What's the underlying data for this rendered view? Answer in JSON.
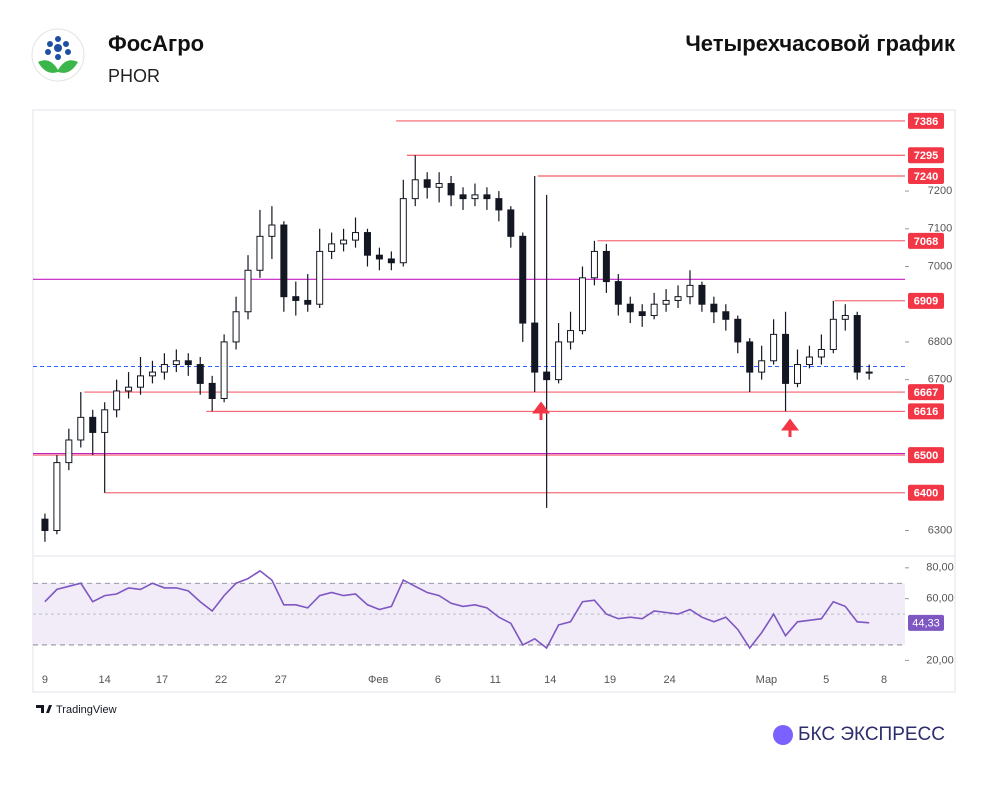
{
  "header": {
    "company": "ФосАгро",
    "ticker": "PHOR",
    "chart_title": "Четырехчасовой график"
  },
  "footer": {
    "source": "TradingView",
    "brand": "БКС ЭКСПРЕСС"
  },
  "chart_data": [
    {
      "type": "candlestick",
      "xlim": [
        0,
        73
      ],
      "xticks": [
        {
          "value": 1,
          "label": "9"
        },
        {
          "value": 6,
          "label": "14"
        },
        {
          "value": 10.8,
          "label": "17"
        },
        {
          "value": 15.75,
          "label": "22"
        },
        {
          "value": 20.75,
          "label": "27"
        },
        {
          "value": 28.9,
          "label": "Фев"
        },
        {
          "value": 33.9,
          "label": "6"
        },
        {
          "value": 38.7,
          "label": "11"
        },
        {
          "value": 43.3,
          "label": "14"
        },
        {
          "value": 48.3,
          "label": "19"
        },
        {
          "value": 53.3,
          "label": "24"
        },
        {
          "value": 61.4,
          "label": "Мар"
        },
        {
          "value": 66.4,
          "label": "5"
        },
        {
          "value": 71.25,
          "label": "8"
        }
      ],
      "ylim": [
        6235,
        7415
      ],
      "yticks": [
        6300,
        6700,
        6800,
        7000,
        7100,
        7200
      ],
      "x": [
        1,
        2,
        3,
        4,
        5,
        6,
        7,
        8,
        9,
        10,
        11,
        12,
        13,
        14,
        15,
        16,
        17,
        18,
        19,
        20,
        21,
        22,
        23,
        24,
        25,
        26,
        27,
        28,
        29,
        30,
        31,
        32,
        33,
        34,
        35,
        36,
        37,
        38,
        39,
        40,
        41,
        42,
        43,
        44,
        45,
        46,
        47,
        48,
        49,
        50,
        51,
        52,
        53,
        54,
        55,
        56,
        57,
        58,
        59,
        60,
        61,
        62,
        63,
        64,
        65,
        66,
        67,
        68,
        69,
        70
      ],
      "open": [
        6330,
        6300,
        6480,
        6540,
        6600,
        6560,
        6620,
        6670,
        6680,
        6710,
        6720,
        6740,
        6750,
        6740,
        6690,
        6650,
        6800,
        6880,
        6990,
        7080,
        7110,
        6920,
        6910,
        6900,
        7040,
        7060,
        7070,
        7090,
        7030,
        7020,
        7010,
        7180,
        7230,
        7210,
        7220,
        7190,
        7180,
        7190,
        7180,
        7150,
        7080,
        6850,
        6720,
        6700,
        6800,
        6830,
        6970,
        7040,
        6960,
        6900,
        6880,
        6870,
        6900,
        6910,
        6920,
        6950,
        6900,
        6880,
        6860,
        6800,
        6720,
        6750,
        6820,
        6690,
        6740,
        6760,
        6780,
        6860,
        6870,
        6720
      ],
      "high": [
        6345,
        6500,
        6570,
        6667,
        6620,
        6640,
        6700,
        6720,
        6760,
        6750,
        6770,
        6780,
        6770,
        6760,
        6710,
        6820,
        6920,
        7030,
        7150,
        7160,
        7120,
        6960,
        6980,
        7100,
        7090,
        7100,
        7130,
        7100,
        7050,
        7040,
        7230,
        7295,
        7250,
        7250,
        7240,
        7210,
        7220,
        7210,
        7200,
        7160,
        7090,
        7240,
        7190,
        6850,
        6880,
        7000,
        7068,
        7060,
        6980,
        6920,
        6900,
        6930,
        6940,
        6950,
        6990,
        6960,
        6920,
        6900,
        6870,
        6810,
        6790,
        6860,
        6880,
        6780,
        6790,
        6820,
        6909,
        6900,
        6880,
        6740
      ],
      "low": [
        6270,
        6290,
        6460,
        6520,
        6500,
        6400,
        6600,
        6650,
        6660,
        6690,
        6700,
        6720,
        6710,
        6660,
        6616,
        6640,
        6780,
        6860,
        6970,
        7020,
        6880,
        6870,
        6880,
        6890,
        7020,
        7040,
        7050,
        7000,
        6990,
        6990,
        7000,
        7160,
        7180,
        7170,
        7160,
        7150,
        7160,
        7150,
        7120,
        7050,
        6800,
        6667,
        6360,
        6690,
        6780,
        6820,
        6950,
        6930,
        6870,
        6850,
        6840,
        6860,
        6880,
        6890,
        6900,
        6880,
        6850,
        6830,
        6770,
        6667,
        6700,
        6740,
        6616,
        6680,
        6730,
        6740,
        6770,
        6830,
        6700,
        6700
      ],
      "close": [
        6300,
        6480,
        6540,
        6600,
        6560,
        6620,
        6670,
        6680,
        6710,
        6720,
        6740,
        6750,
        6740,
        6690,
        6650,
        6800,
        6880,
        6990,
        7080,
        7110,
        6920,
        6910,
        6900,
        7040,
        7060,
        7070,
        7090,
        7030,
        7020,
        7010,
        7180,
        7230,
        7210,
        7220,
        7190,
        7180,
        7190,
        7180,
        7150,
        7080,
        6850,
        6720,
        6700,
        6800,
        6830,
        6970,
        7040,
        6960,
        6900,
        6880,
        6870,
        6900,
        6910,
        6920,
        6950,
        6900,
        6880,
        6860,
        6800,
        6720,
        6750,
        6820,
        6690,
        6740,
        6760,
        6780,
        6860,
        6870,
        6720,
        6720
      ],
      "levels": [
        {
          "value": 7386,
          "start_x": 30.4
        },
        {
          "value": 7295,
          "start_x": 31.3
        },
        {
          "value": 7240,
          "start_x": 42.25
        },
        {
          "value": 7068,
          "start_x": 47.25
        },
        {
          "value": 6909,
          "start_x": 67.1
        },
        {
          "value": 6667,
          "start_x": 4.3
        },
        {
          "value": 6616,
          "start_x": 14.5
        },
        {
          "value": 6500,
          "start_x": 0
        },
        {
          "value": 6400,
          "start_x": 6
        }
      ],
      "level_color": "#f23645",
      "up_color": "#ffffff",
      "down_color": "#131722",
      "trend_lines": [
        6966,
        6504
      ],
      "trend_color": "#c41ec4",
      "price_line": 6735,
      "price_line_color": "#2962ff"
    },
    {
      "type": "line",
      "name": "RSI",
      "color": "#7e57c2",
      "xlim": [
        0,
        73
      ],
      "ylim": [
        17,
        87
      ],
      "yticks": [
        {
          "value": 20,
          "label": "20,00"
        },
        {
          "value": 60,
          "label": "60,00"
        },
        {
          "value": 80,
          "label": "80,00"
        }
      ],
      "bands": [
        30,
        70
      ],
      "middle": 50,
      "x": [
        1,
        2,
        3,
        4,
        5,
        6,
        7,
        8,
        9,
        10,
        11,
        12,
        13,
        14,
        15,
        16,
        17,
        18,
        19,
        20,
        21,
        22,
        23,
        24,
        25,
        26,
        27,
        28,
        29,
        30,
        31,
        32,
        33,
        34,
        35,
        36,
        37,
        38,
        39,
        40,
        41,
        42,
        43,
        44,
        45,
        46,
        47,
        48,
        49,
        50,
        51,
        52,
        53,
        54,
        55,
        56,
        57,
        58,
        59,
        60,
        61,
        62,
        63,
        64,
        65,
        66,
        67,
        68,
        69,
        70
      ],
      "values": [
        58,
        66,
        68,
        70,
        58,
        62,
        63,
        67,
        66,
        70,
        67,
        67,
        65,
        58,
        52,
        62,
        70,
        73,
        78,
        72,
        56,
        56,
        54,
        62,
        64,
        62,
        63,
        56,
        53,
        55,
        72,
        68,
        64,
        62,
        57,
        55,
        56,
        54,
        48,
        44,
        30,
        34,
        28,
        43,
        45,
        58,
        59,
        50,
        47,
        48,
        47,
        52,
        51,
        50,
        53,
        48,
        45,
        48,
        40,
        28,
        38,
        50,
        36,
        45,
        46,
        47,
        58,
        55,
        45,
        44.33
      ],
      "current": {
        "value": 44.33,
        "label": "44,33"
      }
    }
  ]
}
